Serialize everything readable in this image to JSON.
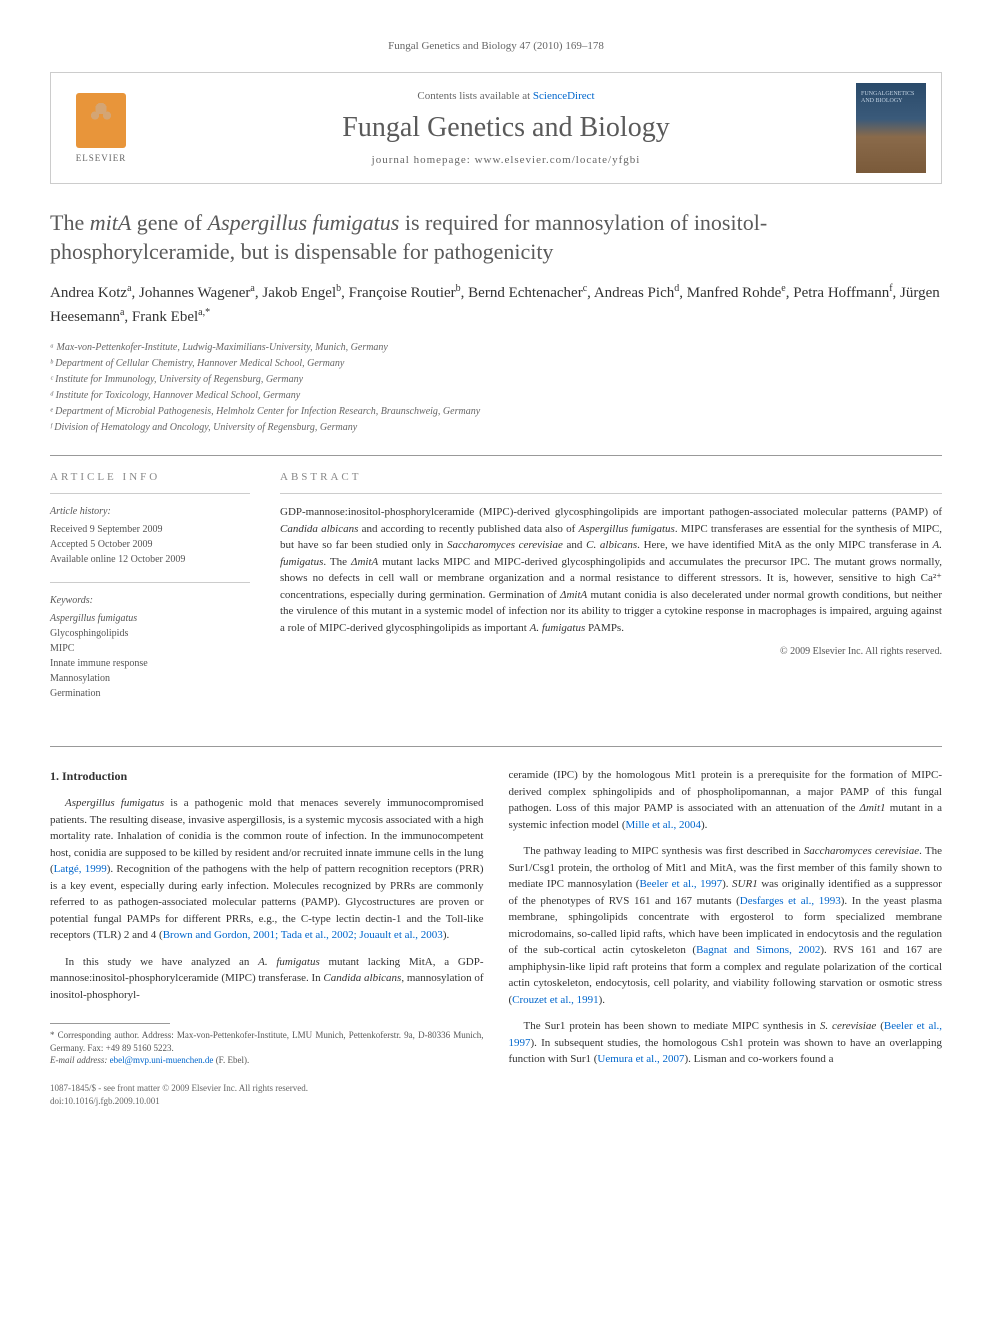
{
  "running_header": "Fungal Genetics and Biology 47 (2010) 169–178",
  "banner": {
    "elsevier_label": "ELSEVIER",
    "contents_prefix": "Contents lists available at ",
    "contents_link": "ScienceDirect",
    "journal_name": "Fungal Genetics and Biology",
    "homepage_prefix": "journal homepage: ",
    "homepage_url": "www.elsevier.com/locate/yfgbi",
    "cover_text": "FUNGALGENETICS AND BIOLOGY"
  },
  "title_html": "The <em>mitA</em> gene of <em>Aspergillus fumigatus</em> is required for mannosylation of inositol-phosphorylceramide, but is dispensable for pathogenicity",
  "authors_html": "Andrea Kotz<sup>a</sup>, Johannes Wagener<sup>a</sup>, Jakob Engel<sup>b</sup>, Françoise Routier<sup>b</sup>, Bernd Echtenacher<sup>c</sup>, Andreas Pich<sup>d</sup>, Manfred Rohde<sup>e</sup>, Petra Hoffmann<sup>f</sup>, Jürgen Heesemann<sup>a</sup>, Frank Ebel<sup>a,*</sup>",
  "affiliations": [
    "ᵃ Max-von-Pettenkofer-Institute, Ludwig-Maximilians-University, Munich, Germany",
    "ᵇ Department of Cellular Chemistry, Hannover Medical School, Germany",
    "ᶜ Institute for Immunology, University of Regensburg, Germany",
    "ᵈ Institute for Toxicology, Hannover Medical School, Germany",
    "ᵉ Department of Microbial Pathogenesis, Helmholz Center for Infection Research, Braunschweig, Germany",
    "ᶠ Division of Hematology and Oncology, University of Regensburg, Germany"
  ],
  "article_info": {
    "header": "ARTICLE INFO",
    "history_label": "Article history:",
    "received": "Received 9 September 2009",
    "accepted": "Accepted 5 October 2009",
    "online": "Available online 12 October 2009",
    "keywords_label": "Keywords:",
    "keywords": [
      "Aspergillus fumigatus",
      "Glycosphingolipids",
      "MIPC",
      "Innate immune response",
      "Mannosylation",
      "Germination"
    ]
  },
  "abstract": {
    "header": "ABSTRACT",
    "text_html": "GDP-mannose:inositol-phosphorylceramide (MIPC)-derived glycosphingolipids are important pathogen-associated molecular patterns (PAMP) of <em>Candida albicans</em> and according to recently published data also of <em>Aspergillus fumigatus</em>. MIPC transferases are essential for the synthesis of MIPC, but have so far been studied only in <em>Saccharomyces cerevisiae</em> and <em>C. albicans</em>. Here, we have identified MitA as the only MIPC transferase in <em>A. fumigatus</em>. The <em>ΔmitA</em> mutant lacks MIPC and MIPC-derived glycosphingolipids and accumulates the precursor IPC. The mutant grows normally, shows no defects in cell wall or membrane organization and a normal resistance to different stressors. It is, however, sensitive to high Ca²⁺ concentrations, especially during germination. Germination of <em>ΔmitA</em> mutant conidia is also decelerated under normal growth conditions, but neither the virulence of this mutant in a systemic model of infection nor its ability to trigger a cytokine response in macrophages is impaired, arguing against a role of MIPC-derived glycosphingolipids as important <em>A. fumigatus</em> PAMPs.",
    "copyright": "© 2009 Elsevier Inc. All rights reserved."
  },
  "body": {
    "intro_heading": "1. Introduction",
    "left_paragraphs": [
      "<em>Aspergillus fumigatus</em> is a pathogenic mold that menaces severely immunocompromised patients. The resulting disease, invasive aspergillosis, is a systemic mycosis associated with a high mortality rate. Inhalation of conidia is the common route of infection. In the immunocompetent host, conidia are supposed to be killed by resident and/or recruited innate immune cells in the lung (<a>Latgé, 1999</a>). Recognition of the pathogens with the help of pattern recognition receptors (PRR) is a key event, especially during early infection. Molecules recognized by PRRs are commonly referred to as pathogen-associated molecular patterns (PAMP). Glycostructures are proven or potential fungal PAMPs for different PRRs, e.g., the C-type lectin dectin-1 and the Toll-like receptors (TLR) 2 and 4 (<a>Brown and Gordon, 2001; Tada et al., 2002; Jouault et al., 2003</a>).",
      "In this study we have analyzed an <em>A. fumigatus</em> mutant lacking MitA, a GDP-mannose:inositol-phosphorylceramide (MIPC) transferase. In <em>Candida albicans</em>, mannosylation of inositol-phosphoryl-"
    ],
    "right_paragraphs": [
      "ceramide (IPC) by the homologous Mit1 protein is a prerequisite for the formation of MIPC-derived complex sphingolipids and of phospholipomannan, a major PAMP of this fungal pathogen. Loss of this major PAMP is associated with an attenuation of the <em>Δmit1</em> mutant in a systemic infection model (<a>Mille et al., 2004</a>).",
      "The pathway leading to MIPC synthesis was first described in <em>Saccharomyces cerevisiae</em>. The Sur1/Csg1 protein, the ortholog of Mit1 and MitA, was the first member of this family shown to mediate IPC mannosylation (<a>Beeler et al., 1997</a>). <em>SUR1</em> was originally identified as a suppressor of the phenotypes of RVS 161 and 167 mutants (<a>Desfarges et al., 1993</a>). In the yeast plasma membrane, sphingolipids concentrate with ergosterol to form specialized membrane microdomains, so-called lipid rafts, which have been implicated in endocytosis and the regulation of the sub-cortical actin cytoskeleton (<a>Bagnat and Simons, 2002</a>). RVS 161 and 167 are amphiphysin-like lipid raft proteins that form a complex and regulate polarization of the cortical actin cytoskeleton, endocytosis, cell polarity, and viability following starvation or osmotic stress (<a>Crouzet et al., 1991</a>).",
      "The Sur1 protein has been shown to mediate MIPC synthesis in <em>S. cerevisiae</em> (<a>Beeler et al., 1997</a>). In subsequent studies, the homologous Csh1 protein was shown to have an overlapping function with Sur1 (<a>Uemura et al., 2007</a>). Lisman and co-workers found a"
    ]
  },
  "footnote": {
    "corr_html": "* Corresponding author. Address: Max-von-Pettenkofer-Institute, LMU Munich, Pettenkoferstr. 9a, D-80336 Munich, Germany. Fax: +49 89 5160 5223.",
    "email_label": "E-mail address: ",
    "email": "ebel@mvp.uni-muenchen.de",
    "email_attr": " (F. Ebel)."
  },
  "bottom": {
    "issn_line": "1087-1845/$ - see front matter © 2009 Elsevier Inc. All rights reserved.",
    "doi_line": "doi:10.1016/j.fgb.2009.10.001"
  },
  "colors": {
    "link": "#0066cc",
    "text": "#333333",
    "muted": "#666666",
    "elsevier_orange": "#e8953a"
  }
}
